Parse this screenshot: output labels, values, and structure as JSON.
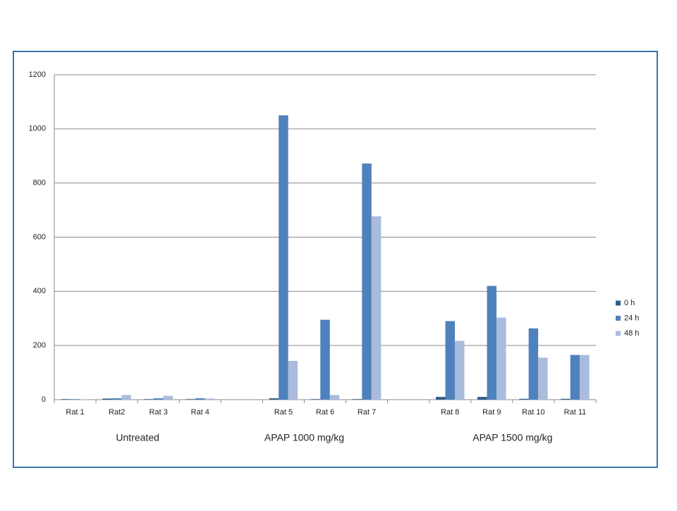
{
  "chart_data": {
    "type": "bar",
    "categories": [
      "Rat 1",
      "Rat2",
      "Rat 3",
      "Rat 4",
      null,
      "Rat 5",
      "Rat 6",
      "Rat 7",
      null,
      "Rat 8",
      "Rat 9",
      "Rat 10",
      "Rat 11"
    ],
    "series": [
      {
        "name": "0 h",
        "color": "#2f5b8a",
        "values": [
          2,
          4,
          2,
          2,
          null,
          5,
          2,
          2,
          null,
          10,
          10,
          3,
          3
        ]
      },
      {
        "name": "24 h",
        "color": "#4f81bd",
        "values": [
          2,
          5,
          5,
          5,
          null,
          1050,
          295,
          872,
          null,
          290,
          420,
          263,
          165
        ]
      },
      {
        "name": "48 h",
        "color": "#a9bcdc",
        "values": [
          1,
          17,
          14,
          4,
          null,
          143,
          17,
          677,
          null,
          217,
          303,
          155,
          165
        ]
      }
    ],
    "annotations": [
      "Untreated",
      "APAP 1000 mg/kg",
      "APAP 1500 mg/kg"
    ],
    "ylim": [
      0,
      1200
    ],
    "yticks": [
      0,
      200,
      400,
      600,
      800,
      1000,
      1200
    ],
    "grid": true,
    "legend": "right"
  }
}
